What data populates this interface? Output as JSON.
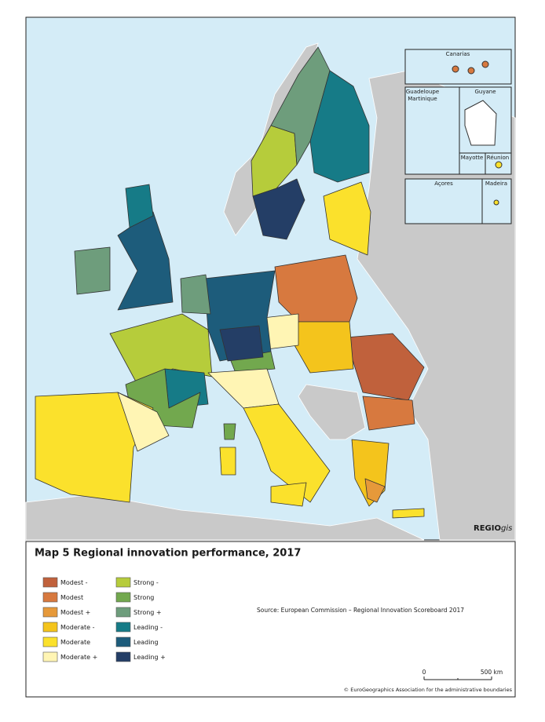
{
  "insets": [
    "Canarias",
    "Guadeloupe\nMartinique",
    "Guyane",
    "Mayotte",
    "Réunion",
    "Açores",
    "Madeira"
  ],
  "logo": {
    "main": "REGIO",
    "italic": "gis"
  },
  "title": "Map 5 Regional innovation performance, 2017",
  "legend": [
    {
      "label": "Modest -",
      "color": "#c0613c"
    },
    {
      "label": "Modest",
      "color": "#d7793f"
    },
    {
      "label": "Modest +",
      "color": "#e6993a"
    },
    {
      "label": "Moderate -",
      "color": "#f4c41c"
    },
    {
      "label": "Moderate",
      "color": "#fbe12c"
    },
    {
      "label": "Moderate +",
      "color": "#fff5b4"
    },
    {
      "label": "Strong -",
      "color": "#b6cc3b"
    },
    {
      "label": "Strong",
      "color": "#72a84e"
    },
    {
      "label": "Strong +",
      "color": "#6e9d7c"
    },
    {
      "label": "Leading -",
      "color": "#167b87"
    },
    {
      "label": "Leading",
      "color": "#1d5c7b"
    },
    {
      "label": "Leading +",
      "color": "#243e66"
    }
  ],
  "source": "Source: European Commission – Regional Innovation Scoreboard 2017",
  "scale": {
    "start": "0",
    "end": "500 km"
  },
  "copyright": "© EuroGeographics Association for the administrative boundaries"
}
